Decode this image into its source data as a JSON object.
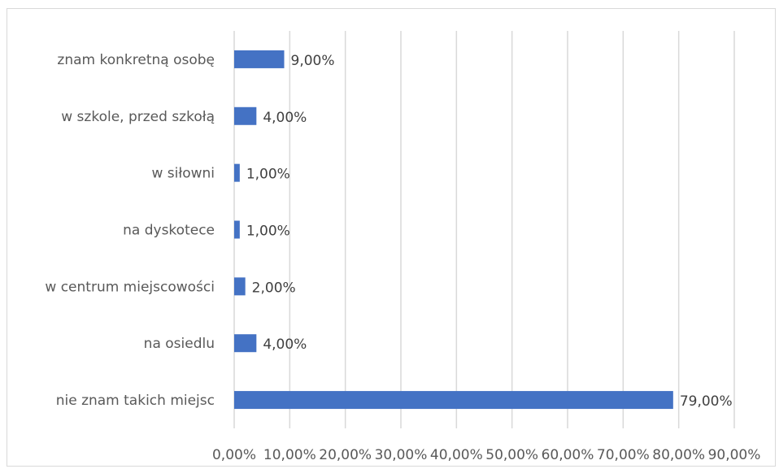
{
  "chart_data": {
    "type": "bar",
    "orientation": "horizontal",
    "categories": [
      "znam konkretną osobę",
      "w szkole, przed szkołą",
      "w siłowni",
      "na dyskotece",
      "w centrum miejscowości",
      "na osiedlu",
      "nie znam takich miejsc"
    ],
    "values": [
      9,
      4,
      1,
      1,
      2,
      4,
      79
    ],
    "data_labels": [
      "9,00%",
      "4,00%",
      "1,00%",
      "1,00%",
      "2,00%",
      "4,00%",
      "79,00%"
    ],
    "xticks": [
      0,
      10,
      20,
      30,
      40,
      50,
      60,
      70,
      80,
      90
    ],
    "xtick_labels": [
      "0,00%",
      "10,00%",
      "20,00%",
      "30,00%",
      "40,00%",
      "50,00%",
      "60,00%",
      "70,00%",
      "80,00%",
      "90,00%"
    ],
    "xlim": [
      0,
      90
    ],
    "grid": true,
    "colors": {
      "bar": "#4472c4",
      "grid": "#d9d9d9"
    }
  }
}
